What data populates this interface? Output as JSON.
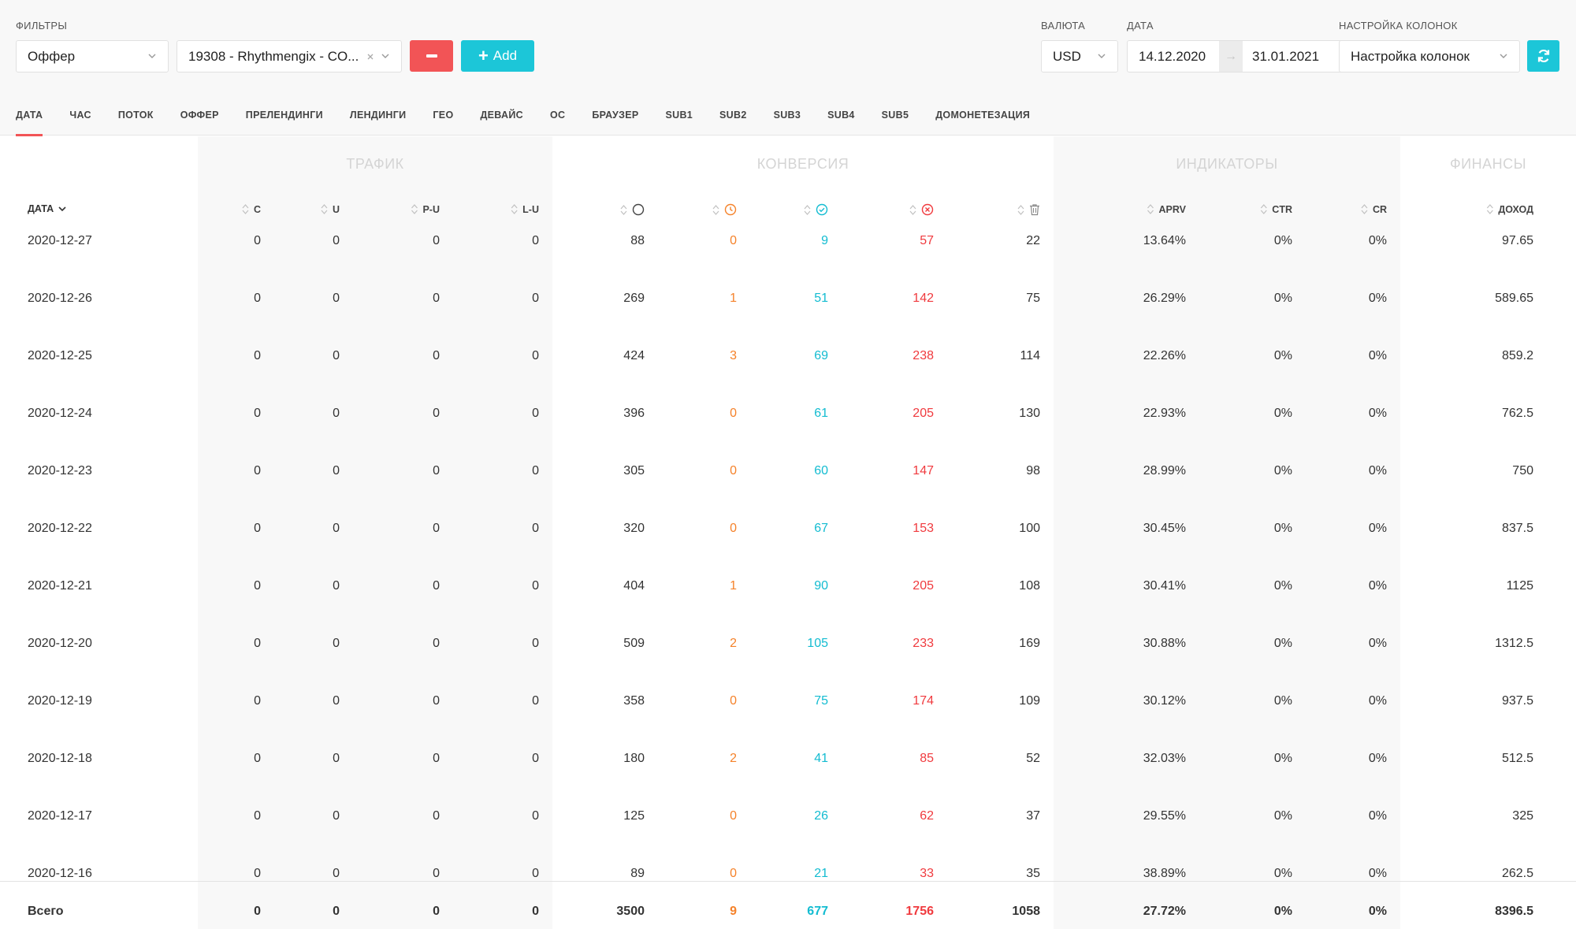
{
  "filters": {
    "label": "ФИЛЬТРЫ",
    "type_value": "Оффер",
    "offer_value": "19308 - Rhythmengix - CO...",
    "add_label": "Add"
  },
  "currency": {
    "label": "ВАЛЮТА",
    "value": "USD"
  },
  "date": {
    "label": "ДАТА",
    "from": "14.12.2020",
    "to": "31.01.2021"
  },
  "columns_setting": {
    "label": "НАСТРОЙКА КОЛОНОК",
    "value": "Настройка колонок"
  },
  "colors": {
    "accent": "#1cc6d8",
    "danger": "#f25456",
    "pending": "#f5822a",
    "approved": "#13bcd1",
    "rejected": "#f03a3e"
  },
  "tabs": [
    "ДАТА",
    "ЧАС",
    "ПОТОК",
    "ОФФЕР",
    "ПРЕЛЕНДИНГИ",
    "ЛЕНДИНГИ",
    "ГЕО",
    "ДЕВАЙС",
    "ОС",
    "БРАУЗЕР",
    "SUB1",
    "SUB2",
    "SUB3",
    "SUB4",
    "SUB5",
    "ДОМОНЕТЕЗАЦИЯ"
  ],
  "active_tab": "ДАТА",
  "groups": [
    "ТРАФИК",
    "КОНВЕРСИЯ",
    "ИНДИКАТОРЫ",
    "ФИНАНСЫ"
  ],
  "date_header": "ДАТА",
  "headers": {
    "c": "C",
    "u": "U",
    "pu": "P-U",
    "lu": "L-U",
    "conv_icons": [
      "circle-icon",
      "clock-icon",
      "check-circle-icon",
      "x-circle-icon",
      "trash-icon"
    ],
    "aprv": "APRV",
    "ctr": "CTR",
    "cr": "CR",
    "income": "ДОХОД"
  },
  "rows": [
    [
      "2020-12-27",
      "0",
      "0",
      "0",
      "0",
      "88",
      "0",
      "9",
      "57",
      "22",
      "13.64%",
      "0%",
      "0%",
      "97.65"
    ],
    [
      "2020-12-26",
      "0",
      "0",
      "0",
      "0",
      "269",
      "1",
      "51",
      "142",
      "75",
      "26.29%",
      "0%",
      "0%",
      "589.65"
    ],
    [
      "2020-12-25",
      "0",
      "0",
      "0",
      "0",
      "424",
      "3",
      "69",
      "238",
      "114",
      "22.26%",
      "0%",
      "0%",
      "859.2"
    ],
    [
      "2020-12-24",
      "0",
      "0",
      "0",
      "0",
      "396",
      "0",
      "61",
      "205",
      "130",
      "22.93%",
      "0%",
      "0%",
      "762.5"
    ],
    [
      "2020-12-23",
      "0",
      "0",
      "0",
      "0",
      "305",
      "0",
      "60",
      "147",
      "98",
      "28.99%",
      "0%",
      "0%",
      "750"
    ],
    [
      "2020-12-22",
      "0",
      "0",
      "0",
      "0",
      "320",
      "0",
      "67",
      "153",
      "100",
      "30.45%",
      "0%",
      "0%",
      "837.5"
    ],
    [
      "2020-12-21",
      "0",
      "0",
      "0",
      "0",
      "404",
      "1",
      "90",
      "205",
      "108",
      "30.41%",
      "0%",
      "0%",
      "1125"
    ],
    [
      "2020-12-20",
      "0",
      "0",
      "0",
      "0",
      "509",
      "2",
      "105",
      "233",
      "169",
      "30.88%",
      "0%",
      "0%",
      "1312.5"
    ],
    [
      "2020-12-19",
      "0",
      "0",
      "0",
      "0",
      "358",
      "0",
      "75",
      "174",
      "109",
      "30.12%",
      "0%",
      "0%",
      "937.5"
    ],
    [
      "2020-12-18",
      "0",
      "0",
      "0",
      "0",
      "180",
      "2",
      "41",
      "85",
      "52",
      "32.03%",
      "0%",
      "0%",
      "512.5"
    ],
    [
      "2020-12-17",
      "0",
      "0",
      "0",
      "0",
      "125",
      "0",
      "26",
      "62",
      "37",
      "29.55%",
      "0%",
      "0%",
      "325"
    ],
    [
      "2020-12-16",
      "0",
      "0",
      "0",
      "0",
      "89",
      "0",
      "21",
      "33",
      "35",
      "38.89%",
      "0%",
      "0%",
      "262.5"
    ]
  ],
  "total": [
    "Всего",
    "0",
    "0",
    "0",
    "0",
    "3500",
    "9",
    "677",
    "1756",
    "1058",
    "27.72%",
    "0%",
    "0%",
    "8396.5"
  ]
}
